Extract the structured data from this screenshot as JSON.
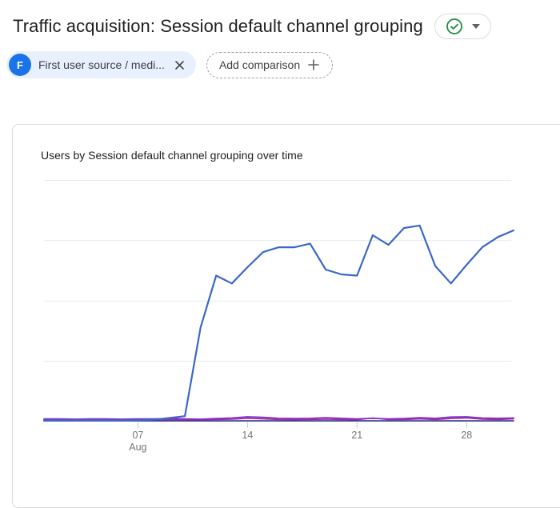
{
  "header": {
    "title": "Traffic acquisition: Session default channel grouping",
    "status_icon": "check-circle",
    "status_icon_color": "#1e8e3e"
  },
  "filters": {
    "chip": {
      "avatar_letter": "F",
      "avatar_color": "#1a73e8",
      "background_color": "#e8f0fe",
      "label": "First user source / medi...",
      "close_icon": "x"
    },
    "add_comparison_label": "Add comparison"
  },
  "chart_data": {
    "type": "line",
    "title": "Users by Session default channel grouping over time",
    "x_unit": "day of August",
    "x_days": [
      1,
      2,
      3,
      4,
      5,
      6,
      7,
      8,
      9,
      10,
      11,
      12,
      13,
      14,
      15,
      16,
      17,
      18,
      19,
      20,
      21,
      22,
      23,
      24,
      25,
      26,
      27,
      28,
      29,
      30,
      31
    ],
    "x_ticks": [
      {
        "day": 7,
        "label": "07",
        "sublabel": "Aug"
      },
      {
        "day": 14,
        "label": "14"
      },
      {
        "day": 21,
        "label": "21"
      },
      {
        "day": 28,
        "label": "28"
      }
    ],
    "ylabel": "Users",
    "ylim": [
      0,
      42
    ],
    "gridlines_y": [
      10,
      20,
      30,
      40
    ],
    "y_axis_tick_labels_visible": false,
    "grid": true,
    "legend_position": "none",
    "values_estimated_from_pixels": true,
    "series": [
      {
        "name": "main-blue-line",
        "color": "#3a68c9",
        "width": 2.2,
        "values": [
          0.2,
          0.2,
          0.2,
          0.2,
          0.2,
          0.2,
          0.25,
          0.3,
          0.6,
          0.9,
          15.6,
          24.2,
          22.9,
          25.6,
          28.1,
          28.9,
          28.9,
          29.5,
          25.2,
          24.4,
          24.2,
          30.9,
          29.3,
          32.1,
          32.5,
          25.8,
          22.9,
          26.0,
          28.9,
          30.6,
          31.7
        ]
      },
      {
        "name": "purple-line",
        "color": "#7f30d0",
        "width": 1.8,
        "values": [
          0.45,
          0.45,
          0.4,
          0.45,
          0.45,
          0.4,
          0.45,
          0.45,
          0.5,
          0.45,
          0.4,
          0.5,
          0.6,
          0.8,
          0.7,
          0.55,
          0.5,
          0.55,
          0.65,
          0.55,
          0.45,
          0.55,
          0.45,
          0.5,
          0.65,
          0.55,
          0.75,
          0.8,
          0.6,
          0.55,
          0.6
        ]
      },
      {
        "name": "magenta-line",
        "color": "#a62c94",
        "width": 1.6,
        "values": [
          0.3,
          0.3,
          0.3,
          0.3,
          0.3,
          0.3,
          0.3,
          0.3,
          0.35,
          0.3,
          0.3,
          0.35,
          0.4,
          0.55,
          0.45,
          0.35,
          0.3,
          0.35,
          0.4,
          0.35,
          0.3,
          0.6,
          0.35,
          0.35,
          0.45,
          0.35,
          0.5,
          0.6,
          0.4,
          0.35,
          0.45
        ]
      },
      {
        "name": "navy-line",
        "color": "#283089",
        "width": 1.6,
        "values": [
          0.12,
          0.12,
          0.12,
          0.12,
          0.12,
          0.12,
          0.12,
          0.12,
          0.12,
          0.12,
          0.12,
          0.12,
          0.12,
          0.12,
          0.12,
          0.12,
          0.12,
          0.12,
          0.12,
          0.12,
          0.12,
          0.12,
          0.12,
          0.12,
          0.12,
          0.12,
          0.12,
          0.12,
          0.12,
          0.12,
          0.12
        ]
      }
    ]
  },
  "chart_style": {
    "gridline_color": "#e8eaed",
    "tick_color": "#c4c7c5",
    "axis_label_color": "#757575"
  }
}
